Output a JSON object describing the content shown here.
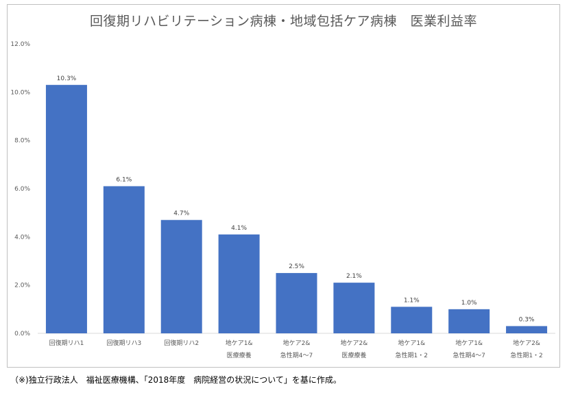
{
  "chart_data": {
    "type": "bar",
    "title": "回復期リハビリテーション病棟・地域包括ケア病棟　医業利益率",
    "categories": [
      [
        "回復期リハ1"
      ],
      [
        "回復期リハ3"
      ],
      [
        "回復期リハ2"
      ],
      [
        "地ケア1&",
        "医療療養"
      ],
      [
        "地ケア2&",
        "急性期4〜7"
      ],
      [
        "地ケア2&",
        "医療療養"
      ],
      [
        "地ケア1&",
        "急性期1・2"
      ],
      [
        "地ケア1&",
        "急性期4〜7"
      ],
      [
        "地ケア2&",
        "急性期1・2"
      ]
    ],
    "values": [
      10.3,
      6.1,
      4.7,
      4.1,
      2.5,
      2.1,
      1.1,
      1.0,
      0.3
    ],
    "data_labels": [
      "10.3%",
      "6.1%",
      "4.7%",
      "4.1%",
      "2.5%",
      "2.1%",
      "1.1%",
      "1.0%",
      "0.3%"
    ],
    "y_ticks": [
      "0.0%",
      "2.0%",
      "4.0%",
      "6.0%",
      "8.0%",
      "10.0%",
      "12.0%"
    ],
    "ylim": [
      0,
      12
    ],
    "xlabel": "",
    "ylabel": "",
    "grid": false,
    "bar_color": "#4472c4"
  },
  "footnote": "（※)独立行政法人　福祉医療機構、「2018年度　病院経営の状況について」を基に作成。"
}
